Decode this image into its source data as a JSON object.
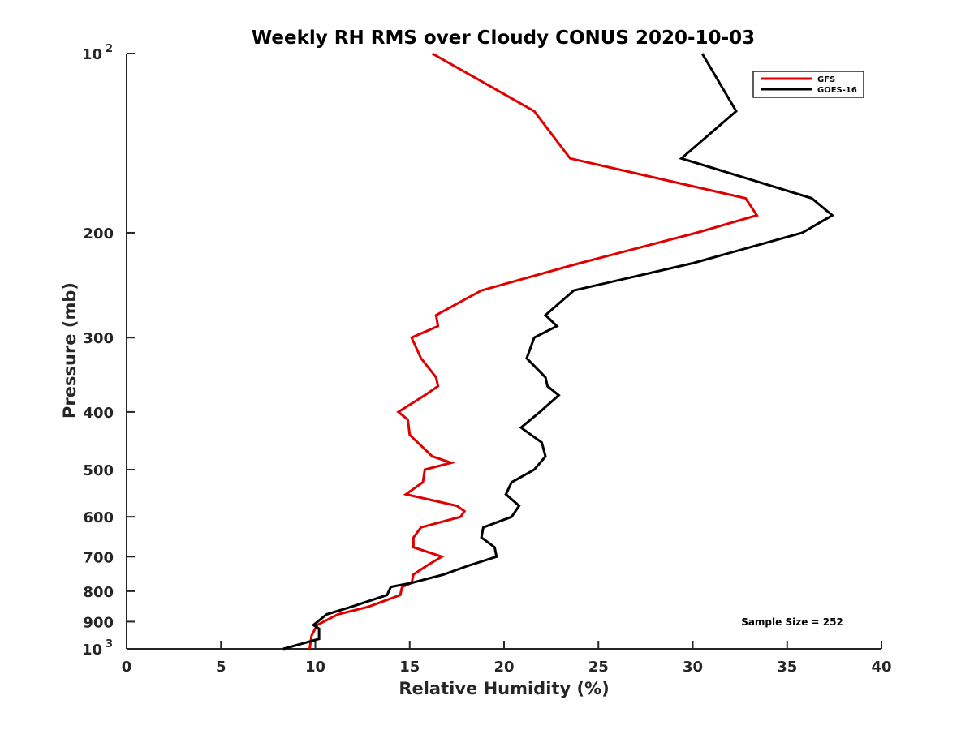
{
  "chart_data": {
    "type": "line",
    "title": "Weekly RH RMS over Cloudy CONUS 2020-10-03",
    "xlabel": "Relative Humidity (%)",
    "ylabel": "Pressure (mb)",
    "xlim": [
      0,
      40
    ],
    "ylim": [
      100,
      1000
    ],
    "y_scale": "log",
    "y_reversed": true,
    "grid": false,
    "x_ticks": [
      0,
      5,
      10,
      15,
      20,
      25,
      30,
      35,
      40
    ],
    "y_ticks": [
      {
        "value": 100,
        "base": "10",
        "exp": "2"
      },
      {
        "value": 200,
        "label": "200"
      },
      {
        "value": 300,
        "label": "300"
      },
      {
        "value": 400,
        "label": "400"
      },
      {
        "value": 500,
        "label": "500"
      },
      {
        "value": 600,
        "label": "600"
      },
      {
        "value": 700,
        "label": "700"
      },
      {
        "value": 800,
        "label": "800"
      },
      {
        "value": 900,
        "label": "900"
      },
      {
        "value": 1000,
        "base": "10",
        "exp": "3"
      }
    ],
    "legend_position": "top-right",
    "annotation": "Sample Size = 252",
    "series": [
      {
        "name": "GFS",
        "color": "#e00000",
        "points": [
          [
            16.2,
            100
          ],
          [
            21.6,
            125
          ],
          [
            23.5,
            150
          ],
          [
            32.8,
            175
          ],
          [
            33.4,
            187
          ],
          [
            30.2,
            200
          ],
          [
            24.0,
            225
          ],
          [
            18.8,
            250
          ],
          [
            16.4,
            275
          ],
          [
            16.5,
            287
          ],
          [
            15.1,
            300
          ],
          [
            15.6,
            325
          ],
          [
            16.4,
            350
          ],
          [
            16.5,
            362
          ],
          [
            15.8,
            375
          ],
          [
            14.4,
            400
          ],
          [
            14.9,
            412
          ],
          [
            15.0,
            437
          ],
          [
            16.2,
            475
          ],
          [
            17.2,
            487
          ],
          [
            15.8,
            500
          ],
          [
            15.7,
            525
          ],
          [
            14.8,
            550
          ],
          [
            17.5,
            575
          ],
          [
            17.9,
            587
          ],
          [
            17.7,
            600
          ],
          [
            15.6,
            625
          ],
          [
            15.2,
            650
          ],
          [
            15.2,
            675
          ],
          [
            16.7,
            700
          ],
          [
            15.9,
            725
          ],
          [
            15.2,
            750
          ],
          [
            15.1,
            775
          ],
          [
            14.6,
            787
          ],
          [
            14.5,
            812
          ],
          [
            12.8,
            850
          ],
          [
            11.2,
            875
          ],
          [
            10.1,
            912
          ],
          [
            9.8,
            950
          ],
          [
            9.7,
            1000
          ]
        ]
      },
      {
        "name": "GOES-16",
        "color": "#000000",
        "points": [
          [
            30.5,
            100
          ],
          [
            32.3,
            125
          ],
          [
            29.4,
            150
          ],
          [
            36.3,
            175
          ],
          [
            37.4,
            187
          ],
          [
            35.8,
            200
          ],
          [
            30.0,
            225
          ],
          [
            23.7,
            250
          ],
          [
            22.2,
            275
          ],
          [
            22.8,
            287
          ],
          [
            21.6,
            300
          ],
          [
            21.2,
            325
          ],
          [
            22.2,
            350
          ],
          [
            22.3,
            362
          ],
          [
            22.9,
            375
          ],
          [
            21.9,
            400
          ],
          [
            20.9,
            425
          ],
          [
            22.0,
            450
          ],
          [
            22.2,
            475
          ],
          [
            21.6,
            500
          ],
          [
            20.4,
            525
          ],
          [
            20.1,
            550
          ],
          [
            20.8,
            575
          ],
          [
            20.4,
            600
          ],
          [
            18.9,
            625
          ],
          [
            18.8,
            650
          ],
          [
            19.5,
            675
          ],
          [
            19.6,
            700
          ],
          [
            18.1,
            725
          ],
          [
            16.8,
            750
          ],
          [
            15.1,
            775
          ],
          [
            14.0,
            787
          ],
          [
            13.8,
            812
          ],
          [
            11.9,
            850
          ],
          [
            10.6,
            875
          ],
          [
            9.9,
            912
          ],
          [
            10.2,
            925
          ],
          [
            10.2,
            962
          ],
          [
            8.3,
            1000
          ]
        ]
      }
    ]
  }
}
